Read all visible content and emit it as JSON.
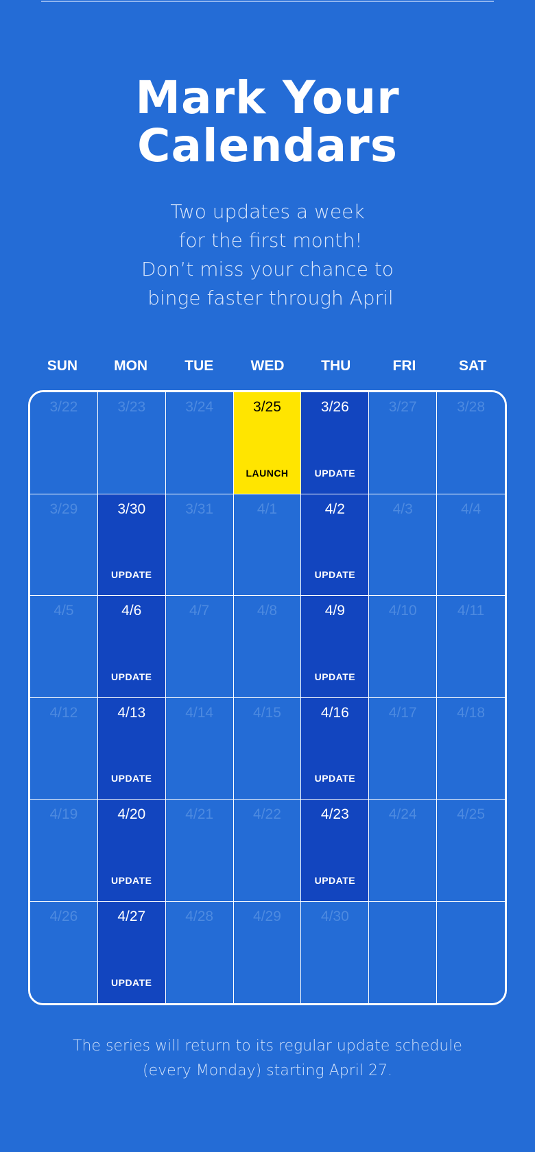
{
  "header": {
    "title_lines": [
      "Mark Your",
      "Calendars"
    ],
    "subtitle_lines": [
      "Two updates a week",
      " for the first month!",
      "Don’t miss your chance to",
      " binge faster through April"
    ]
  },
  "calendar": {
    "weekdays": [
      "SUN",
      "MON",
      "TUE",
      "WED",
      "THU",
      "FRI",
      "SAT"
    ],
    "colors": {
      "background": "#246cd6",
      "update": "#1245bf",
      "launch": "#ffe500"
    },
    "weeks": [
      [
        {
          "date": "3/22"
        },
        {
          "date": "3/23"
        },
        {
          "date": "3/24"
        },
        {
          "date": "3/25",
          "label": "LAUNCH",
          "type": "launch"
        },
        {
          "date": "3/26",
          "label": "UPDATE",
          "type": "update"
        },
        {
          "date": "3/27"
        },
        {
          "date": "3/28"
        }
      ],
      [
        {
          "date": "3/29"
        },
        {
          "date": "3/30",
          "label": "UPDATE",
          "type": "update"
        },
        {
          "date": "3/31"
        },
        {
          "date": "4/1"
        },
        {
          "date": "4/2",
          "label": "UPDATE",
          "type": "update"
        },
        {
          "date": "4/3"
        },
        {
          "date": "4/4"
        }
      ],
      [
        {
          "date": "4/5"
        },
        {
          "date": "4/6",
          "label": "UPDATE",
          "type": "update"
        },
        {
          "date": "4/7"
        },
        {
          "date": "4/8"
        },
        {
          "date": "4/9",
          "label": "UPDATE",
          "type": "update"
        },
        {
          "date": "4/10"
        },
        {
          "date": "4/11"
        }
      ],
      [
        {
          "date": "4/12"
        },
        {
          "date": "4/13",
          "label": "UPDATE",
          "type": "update"
        },
        {
          "date": "4/14"
        },
        {
          "date": "4/15"
        },
        {
          "date": "4/16",
          "label": "UPDATE",
          "type": "update"
        },
        {
          "date": "4/17"
        },
        {
          "date": "4/18"
        }
      ],
      [
        {
          "date": "4/19"
        },
        {
          "date": "4/20",
          "label": "UPDATE",
          "type": "update"
        },
        {
          "date": "4/21"
        },
        {
          "date": "4/22"
        },
        {
          "date": "4/23",
          "label": "UPDATE",
          "type": "update"
        },
        {
          "date": "4/24"
        },
        {
          "date": "4/25"
        }
      ],
      [
        {
          "date": "4/26"
        },
        {
          "date": "4/27",
          "label": "UPDATE",
          "type": "update"
        },
        {
          "date": "4/28"
        },
        {
          "date": "4/29"
        },
        {
          "date": "4/30"
        },
        {
          "date": ""
        },
        {
          "date": ""
        }
      ]
    ]
  },
  "footer": {
    "lines": [
      "The series will return to its regular update schedule",
      "(every Monday) starting April 27."
    ]
  }
}
